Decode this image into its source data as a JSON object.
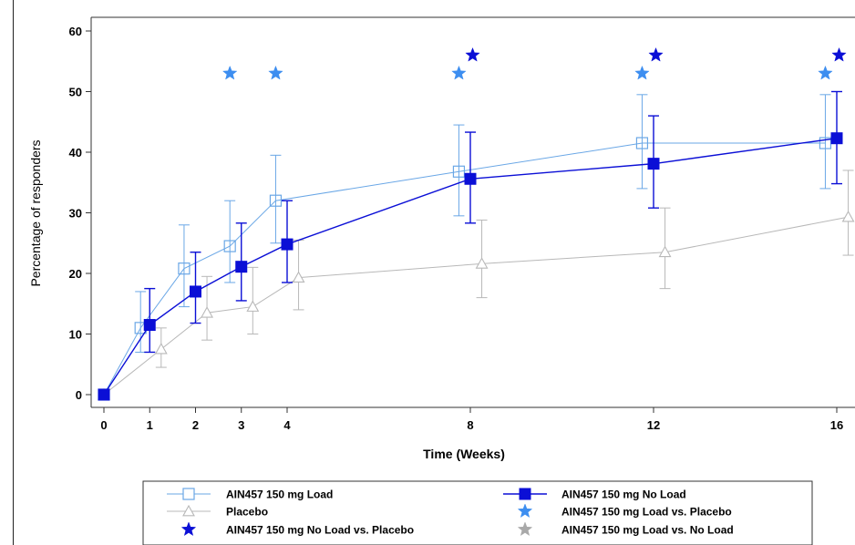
{
  "chart_data": {
    "type": "line",
    "title": "",
    "xlabel": "Time (Weeks)",
    "ylabel": "Percentage of responders",
    "xlim": [
      -0.3,
      16.2
    ],
    "ylim": [
      -1.5,
      62
    ],
    "x_ticks": [
      0,
      1,
      2,
      3,
      4,
      8,
      12,
      16
    ],
    "y_ticks": [
      0,
      10,
      20,
      30,
      40,
      50,
      60
    ],
    "grid": false,
    "legend_position": "bottom",
    "colors": {
      "load": "#6aa7e6",
      "noload": "#0b0fd6",
      "placebo": "#b8b8b8",
      "star_load_vs_placebo": "#3d8ef0",
      "star_noload_vs_placebo": "#0b0fd6",
      "star_load_vs_noload": "#a9a9a9"
    },
    "series": [
      {
        "key": "load",
        "name": "AIN457 150 mg Load",
        "marker": "open-square",
        "points": [
          {
            "x": 0,
            "y": 0,
            "lo": null,
            "hi": null
          },
          {
            "x": 0.8,
            "y": 11,
            "lo": 7,
            "hi": 17
          },
          {
            "x": 1.75,
            "y": 20.8,
            "lo": 14.5,
            "hi": 28
          },
          {
            "x": 2.75,
            "y": 24.5,
            "lo": 18.5,
            "hi": 32
          },
          {
            "x": 3.75,
            "y": 32,
            "lo": 25,
            "hi": 39.5
          },
          {
            "x": 7.75,
            "y": 36.8,
            "lo": 29.5,
            "hi": 44.5
          },
          {
            "x": 11.75,
            "y": 41.5,
            "lo": 34,
            "hi": 49.5
          },
          {
            "x": 15.75,
            "y": 41.5,
            "lo": 34,
            "hi": 49.5
          }
        ]
      },
      {
        "key": "noload",
        "name": "AIN457 150 mg No Load",
        "marker": "filled-square",
        "points": [
          {
            "x": 0,
            "y": 0,
            "lo": null,
            "hi": null
          },
          {
            "x": 1,
            "y": 11.5,
            "lo": 7,
            "hi": 17.5
          },
          {
            "x": 2,
            "y": 17,
            "lo": 11.8,
            "hi": 23.5
          },
          {
            "x": 3,
            "y": 21.1,
            "lo": 15.5,
            "hi": 28.3
          },
          {
            "x": 4,
            "y": 24.8,
            "lo": 18.5,
            "hi": 32
          },
          {
            "x": 8,
            "y": 35.6,
            "lo": 28.3,
            "hi": 43.3
          },
          {
            "x": 12,
            "y": 38.1,
            "lo": 30.8,
            "hi": 46
          },
          {
            "x": 16,
            "y": 42.3,
            "lo": 34.8,
            "hi": 50
          }
        ]
      },
      {
        "key": "placebo",
        "name": "Placebo",
        "marker": "open-triangle",
        "points": [
          {
            "x": 0,
            "y": 0,
            "lo": null,
            "hi": null
          },
          {
            "x": 1.25,
            "y": 7.5,
            "lo": 4.5,
            "hi": 11
          },
          {
            "x": 2.25,
            "y": 13.5,
            "lo": 9,
            "hi": 19.5
          },
          {
            "x": 3.25,
            "y": 14.5,
            "lo": 10,
            "hi": 21
          },
          {
            "x": 4.25,
            "y": 19.3,
            "lo": 14,
            "hi": 25.5
          },
          {
            "x": 8.25,
            "y": 21.6,
            "lo": 16,
            "hi": 28.8
          },
          {
            "x": 12.25,
            "y": 23.5,
            "lo": 17.5,
            "hi": 30.8
          },
          {
            "x": 16.25,
            "y": 29.3,
            "lo": 23,
            "hi": 37
          }
        ]
      }
    ],
    "significance_stars": [
      {
        "comparison": "load_vs_placebo",
        "x": 2.75,
        "y": 53
      },
      {
        "comparison": "load_vs_placebo",
        "x": 3.75,
        "y": 53
      },
      {
        "comparison": "load_vs_placebo",
        "x": 7.75,
        "y": 53
      },
      {
        "comparison": "load_vs_placebo",
        "x": 11.75,
        "y": 53
      },
      {
        "comparison": "load_vs_placebo",
        "x": 15.75,
        "y": 53
      },
      {
        "comparison": "noload_vs_placebo",
        "x": 8.05,
        "y": 56
      },
      {
        "comparison": "noload_vs_placebo",
        "x": 12.05,
        "y": 56
      },
      {
        "comparison": "noload_vs_placebo",
        "x": 16.05,
        "y": 56
      }
    ],
    "legend": [
      {
        "key": "load",
        "label": "AIN457 150 mg Load",
        "kind": "line-open-square"
      },
      {
        "key": "noload",
        "label": "AIN457 150 mg No Load",
        "kind": "line-filled-square"
      },
      {
        "key": "placebo",
        "label": "Placebo",
        "kind": "line-open-triangle"
      },
      {
        "key": "star_load_vs_placebo",
        "label": "AIN457 150 mg Load vs. Placebo",
        "kind": "star"
      },
      {
        "key": "star_noload_vs_placebo",
        "label": "AIN457 150 mg No Load vs. Placebo",
        "kind": "star"
      },
      {
        "key": "star_load_vs_noload",
        "label": "AIN457 150 mg Load vs. No Load",
        "kind": "star"
      }
    ]
  }
}
